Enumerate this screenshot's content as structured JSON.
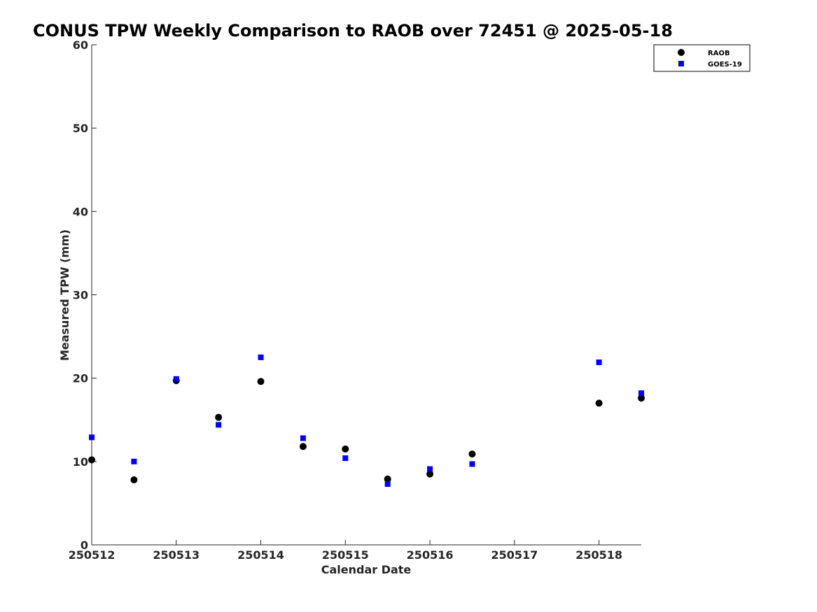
{
  "chart_data": {
    "type": "scatter",
    "title": "CONUS TPW Weekly Comparison to RAOB over 72451 @ 2025-05-18",
    "xlabel": "Calendar Date",
    "ylabel": "Measured TPW (mm)",
    "xlim": [
      0,
      6.5
    ],
    "ylim": [
      0,
      60
    ],
    "x_ticks": [
      0,
      1,
      2,
      3,
      4,
      5,
      6
    ],
    "x_tick_labels": [
      "250512",
      "250513",
      "250514",
      "250515",
      "250516",
      "250517",
      "250518"
    ],
    "y_ticks": [
      0,
      10,
      20,
      30,
      40,
      50,
      60
    ],
    "y_tick_labels": [
      "0",
      "10",
      "20",
      "30",
      "40",
      "50",
      "60"
    ],
    "grid": false,
    "legend_position": "top-right",
    "series": [
      {
        "name": "RAOB",
        "marker": "circle",
        "color": "#000000",
        "x": [
          0,
          0.5,
          1,
          1.5,
          2,
          2.5,
          3,
          3.5,
          4,
          4.5,
          6,
          6.5
        ],
        "y": [
          10.2,
          7.8,
          19.7,
          15.3,
          19.6,
          11.8,
          11.5,
          7.9,
          8.5,
          10.9,
          17.0,
          17.6
        ]
      },
      {
        "name": "GOES-19",
        "marker": "square",
        "color": "#0000ff",
        "x": [
          0,
          0.5,
          1,
          1.5,
          2,
          2.5,
          3,
          3.5,
          4,
          4.5,
          6,
          6.5
        ],
        "y": [
          12.9,
          10.0,
          19.9,
          14.4,
          22.5,
          12.8,
          10.4,
          7.3,
          9.1,
          9.7,
          21.9,
          18.2
        ]
      }
    ]
  }
}
